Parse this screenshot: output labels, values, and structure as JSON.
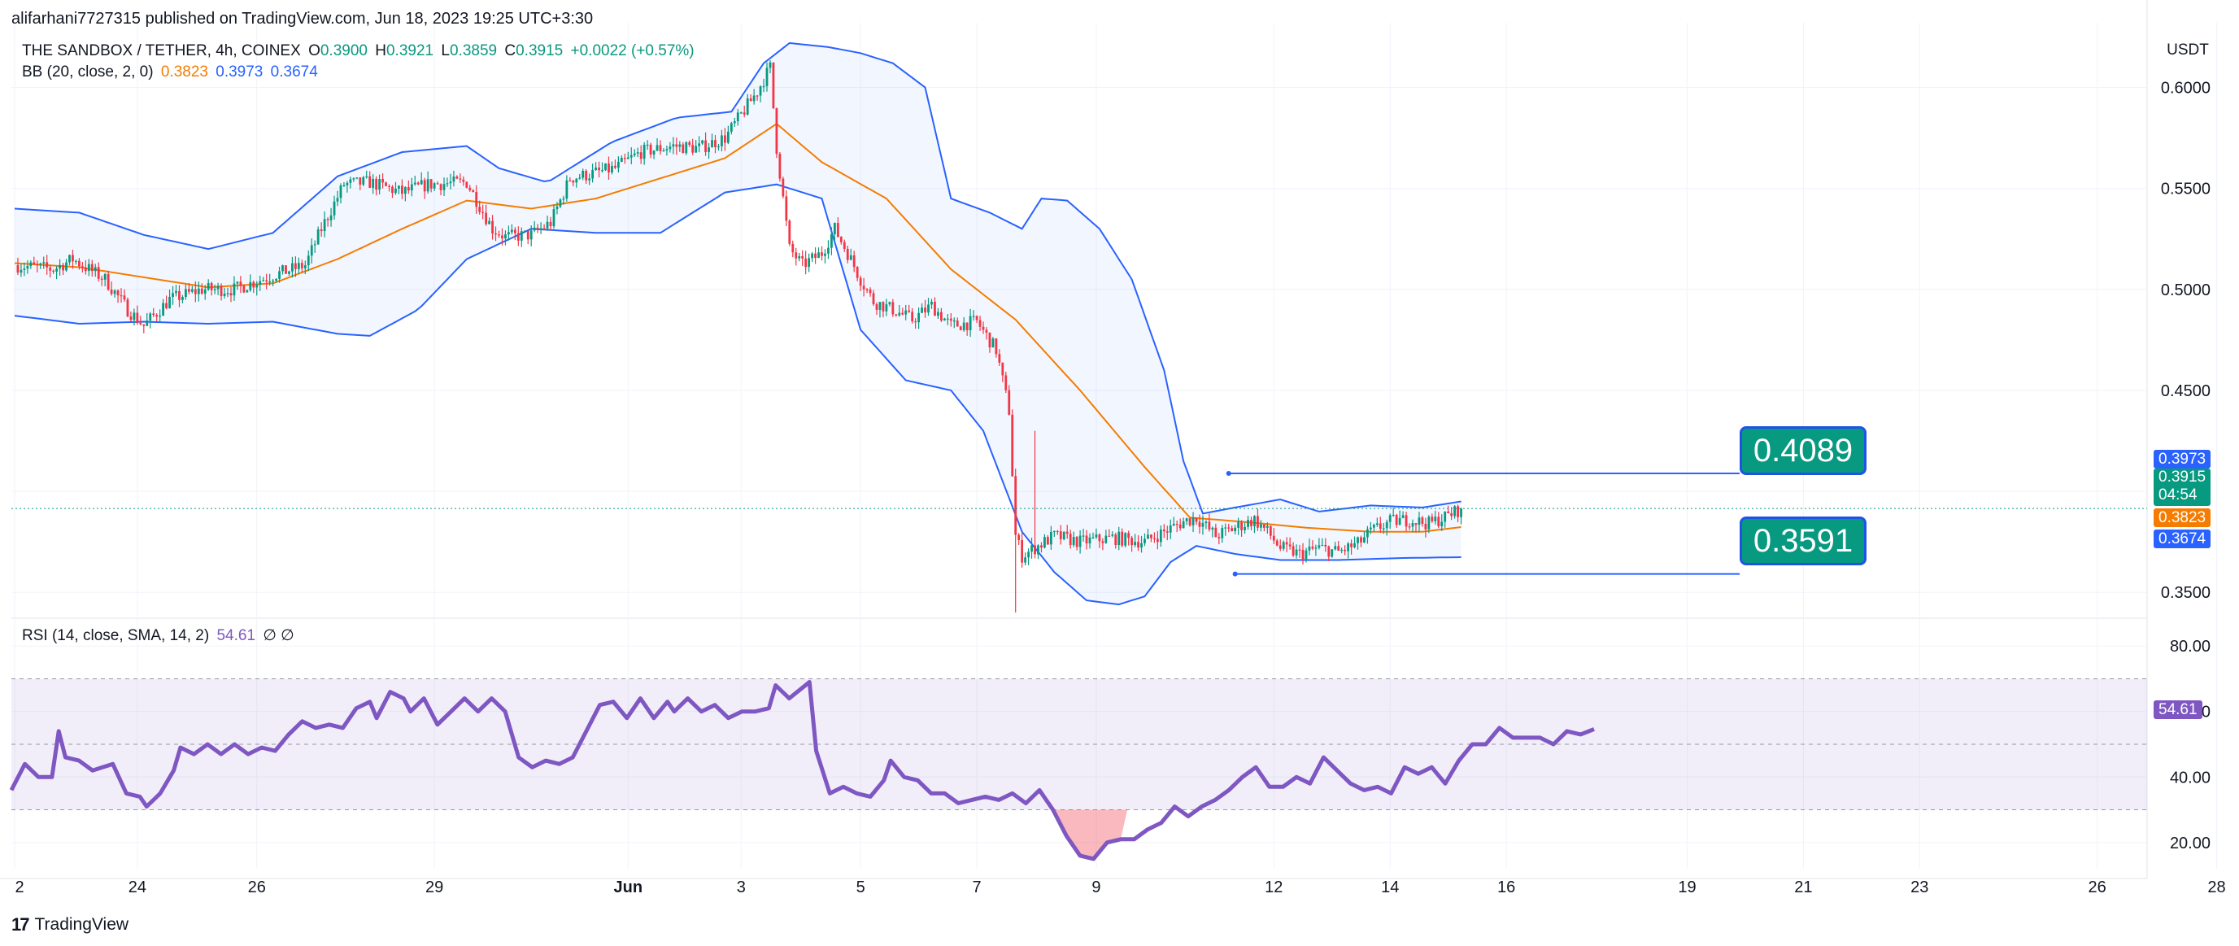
{
  "header": {
    "published": "alifarhani7727315 published on TradingView.com, Jun 18, 2023 19:25 UTC+3:30",
    "symbol": "THE SANDBOX / TETHER, 4h, COINEX",
    "open_label": "O",
    "open": "0.3900",
    "high_label": "H",
    "high": "0.3921",
    "low_label": "L",
    "low": "0.3859",
    "close_label": "C",
    "close": "0.3915",
    "change": "+0.0022 (+0.57%)",
    "bb_label": "BB (20, close, 2, 0)",
    "bb_basis": "0.3823",
    "bb_upper": "0.3973",
    "bb_lower": "0.3674",
    "rsi_label": "RSI (14, close, SMA, 14, 2)",
    "rsi_value": "54.61",
    "rsi_na": "∅ ∅"
  },
  "currency": "USDT",
  "branding": "TradingView",
  "callouts": {
    "upper": "0.4089",
    "lower": "0.3591"
  },
  "price_tags": {
    "bb_upper": "0.3973",
    "last": "0.3915",
    "countdown": "04:54",
    "bb_basis": "0.3823",
    "bb_lower": "0.3674",
    "rsi": "54.61"
  },
  "colors": {
    "up": "#089981",
    "down": "#f23645",
    "bb_basis": "#f57c00",
    "bb_band": "#2962ff",
    "rsi": "#7e57c2",
    "accent": "#089981"
  },
  "chart_data": [
    {
      "type": "candlestick",
      "timeframe": "4h",
      "ylim": [
        0.338,
        0.628
      ],
      "y_ticks": [
        "0.6000",
        "0.5500",
        "0.5000",
        "0.4500",
        "0.3500"
      ],
      "x_ticks": [
        "2",
        "24",
        "26",
        "29",
        "Jun",
        "3",
        "5",
        "7",
        "9",
        "12",
        "14",
        "16",
        "19",
        "21",
        "23",
        "26",
        "28"
      ],
      "anchors": [
        [
          0,
          0.512
        ],
        [
          12,
          0.51
        ],
        [
          18,
          0.515
        ],
        [
          28,
          0.505
        ],
        [
          35,
          0.49
        ],
        [
          40,
          0.482
        ],
        [
          48,
          0.495
        ],
        [
          58,
          0.5
        ],
        [
          68,
          0.5
        ],
        [
          80,
          0.507
        ],
        [
          90,
          0.512
        ],
        [
          95,
          0.53
        ],
        [
          102,
          0.552
        ],
        [
          110,
          0.553
        ],
        [
          120,
          0.548
        ],
        [
          128,
          0.552
        ],
        [
          140,
          0.553
        ],
        [
          148,
          0.53
        ],
        [
          152,
          0.526
        ],
        [
          160,
          0.527
        ],
        [
          166,
          0.533
        ],
        [
          172,
          0.555
        ],
        [
          178,
          0.557
        ],
        [
          186,
          0.56
        ],
        [
          194,
          0.568
        ],
        [
          204,
          0.571
        ],
        [
          212,
          0.57
        ],
        [
          220,
          0.575
        ],
        [
          230,
          0.598
        ],
        [
          234,
          0.61
        ],
        [
          236,
          0.57
        ],
        [
          240,
          0.52
        ],
        [
          244,
          0.512
        ],
        [
          250,
          0.518
        ],
        [
          254,
          0.53
        ],
        [
          258,
          0.518
        ],
        [
          262,
          0.505
        ],
        [
          266,
          0.494
        ],
        [
          272,
          0.49
        ],
        [
          278,
          0.485
        ],
        [
          284,
          0.492
        ],
        [
          290,
          0.482
        ],
        [
          298,
          0.484
        ],
        [
          304,
          0.47
        ],
        [
          308,
          0.44
        ],
        [
          310,
          0.378
        ],
        [
          312,
          0.368
        ],
        [
          316,
          0.372
        ],
        [
          322,
          0.378
        ],
        [
          330,
          0.375
        ],
        [
          340,
          0.377
        ],
        [
          350,
          0.375
        ],
        [
          356,
          0.38
        ],
        [
          362,
          0.385
        ],
        [
          366,
          0.387
        ],
        [
          372,
          0.378
        ],
        [
          378,
          0.382
        ],
        [
          384,
          0.386
        ],
        [
          388,
          0.38
        ],
        [
          392,
          0.372
        ],
        [
          398,
          0.369
        ],
        [
          404,
          0.372
        ],
        [
          410,
          0.37
        ],
        [
          416,
          0.374
        ],
        [
          420,
          0.38
        ],
        [
          426,
          0.385
        ],
        [
          432,
          0.386
        ],
        [
          438,
          0.384
        ],
        [
          444,
          0.388
        ],
        [
          448,
          0.3915
        ]
      ],
      "bollinger": {
        "upper": [
          [
            0,
            0.54
          ],
          [
            20,
            0.538
          ],
          [
            40,
            0.527
          ],
          [
            60,
            0.52
          ],
          [
            80,
            0.528
          ],
          [
            100,
            0.556
          ],
          [
            120,
            0.568
          ],
          [
            140,
            0.571
          ],
          [
            150,
            0.56
          ],
          [
            165,
            0.553
          ],
          [
            185,
            0.573
          ],
          [
            205,
            0.585
          ],
          [
            222,
            0.588
          ],
          [
            232,
            0.612
          ],
          [
            240,
            0.622
          ],
          [
            252,
            0.62
          ],
          [
            262,
            0.617
          ],
          [
            272,
            0.612
          ],
          [
            282,
            0.6
          ],
          [
            290,
            0.545
          ],
          [
            302,
            0.538
          ],
          [
            312,
            0.53
          ],
          [
            318,
            0.545
          ],
          [
            326,
            0.544
          ],
          [
            336,
            0.53
          ],
          [
            346,
            0.505
          ],
          [
            356,
            0.46
          ],
          [
            362,
            0.415
          ],
          [
            368,
            0.389
          ],
          [
            378,
            0.392
          ],
          [
            392,
            0.396
          ],
          [
            404,
            0.39
          ],
          [
            420,
            0.393
          ],
          [
            436,
            0.392
          ],
          [
            448,
            0.395
          ]
        ],
        "basis": [
          [
            0,
            0.513
          ],
          [
            20,
            0.511
          ],
          [
            40,
            0.506
          ],
          [
            60,
            0.501
          ],
          [
            80,
            0.503
          ],
          [
            100,
            0.515
          ],
          [
            120,
            0.53
          ],
          [
            140,
            0.544
          ],
          [
            160,
            0.54
          ],
          [
            180,
            0.545
          ],
          [
            200,
            0.555
          ],
          [
            220,
            0.565
          ],
          [
            236,
            0.582
          ],
          [
            250,
            0.563
          ],
          [
            270,
            0.545
          ],
          [
            290,
            0.51
          ],
          [
            310,
            0.485
          ],
          [
            330,
            0.45
          ],
          [
            350,
            0.412
          ],
          [
            364,
            0.387
          ],
          [
            380,
            0.385
          ],
          [
            400,
            0.382
          ],
          [
            420,
            0.38
          ],
          [
            436,
            0.38
          ],
          [
            448,
            0.3823
          ]
        ],
        "lower": [
          [
            0,
            0.487
          ],
          [
            20,
            0.483
          ],
          [
            40,
            0.484
          ],
          [
            60,
            0.483
          ],
          [
            80,
            0.484
          ],
          [
            100,
            0.478
          ],
          [
            110,
            0.477
          ],
          [
            125,
            0.49
          ],
          [
            140,
            0.515
          ],
          [
            160,
            0.53
          ],
          [
            180,
            0.528
          ],
          [
            200,
            0.528
          ],
          [
            220,
            0.548
          ],
          [
            236,
            0.552
          ],
          [
            250,
            0.545
          ],
          [
            262,
            0.48
          ],
          [
            276,
            0.455
          ],
          [
            290,
            0.45
          ],
          [
            300,
            0.43
          ],
          [
            312,
            0.38
          ],
          [
            322,
            0.36
          ],
          [
            332,
            0.346
          ],
          [
            342,
            0.344
          ],
          [
            350,
            0.348
          ],
          [
            358,
            0.365
          ],
          [
            366,
            0.373
          ],
          [
            378,
            0.369
          ],
          [
            392,
            0.366
          ],
          [
            410,
            0.366
          ],
          [
            430,
            0.367
          ],
          [
            448,
            0.3674
          ]
        ]
      },
      "horizontal_levels": [
        0.4089,
        0.3591
      ]
    },
    {
      "type": "line",
      "name": "RSI (14, close, SMA, 14, 2)",
      "ylim": [
        12,
        88
      ],
      "y_ticks": [
        "80.00",
        "60.00",
        "40.00",
        "20.00"
      ],
      "bands": [
        70,
        50,
        30
      ],
      "points": [
        [
          0,
          36
        ],
        [
          4,
          44
        ],
        [
          8,
          40
        ],
        [
          12,
          40
        ],
        [
          14,
          54
        ],
        [
          16,
          46
        ],
        [
          20,
          45
        ],
        [
          24,
          42
        ],
        [
          30,
          44
        ],
        [
          34,
          35
        ],
        [
          38,
          34
        ],
        [
          40,
          31
        ],
        [
          44,
          35
        ],
        [
          48,
          42
        ],
        [
          50,
          49
        ],
        [
          54,
          47
        ],
        [
          58,
          50
        ],
        [
          62,
          47
        ],
        [
          66,
          50
        ],
        [
          70,
          47
        ],
        [
          74,
          49
        ],
        [
          78,
          48
        ],
        [
          82,
          53
        ],
        [
          86,
          57
        ],
        [
          90,
          55
        ],
        [
          94,
          56
        ],
        [
          98,
          55
        ],
        [
          102,
          61
        ],
        [
          106,
          63
        ],
        [
          108,
          58
        ],
        [
          112,
          66
        ],
        [
          116,
          64
        ],
        [
          118,
          60
        ],
        [
          122,
          64
        ],
        [
          126,
          56
        ],
        [
          130,
          60
        ],
        [
          134,
          64
        ],
        [
          138,
          60
        ],
        [
          142,
          64
        ],
        [
          146,
          60
        ],
        [
          150,
          46
        ],
        [
          154,
          43
        ],
        [
          158,
          45
        ],
        [
          162,
          44
        ],
        [
          166,
          46
        ],
        [
          170,
          54
        ],
        [
          174,
          62
        ],
        [
          178,
          63
        ],
        [
          182,
          58
        ],
        [
          186,
          64
        ],
        [
          190,
          58
        ],
        [
          194,
          63
        ],
        [
          196,
          60
        ],
        [
          200,
          64
        ],
        [
          204,
          60
        ],
        [
          208,
          62
        ],
        [
          212,
          58
        ],
        [
          216,
          60
        ],
        [
          220,
          60
        ],
        [
          224,
          61
        ],
        [
          226,
          68
        ],
        [
          230,
          64
        ],
        [
          236,
          69
        ],
        [
          238,
          48
        ],
        [
          242,
          35
        ],
        [
          246,
          37
        ],
        [
          250,
          35
        ],
        [
          254,
          34
        ],
        [
          258,
          39
        ],
        [
          260,
          45
        ],
        [
          264,
          40
        ],
        [
          268,
          39
        ],
        [
          272,
          35
        ],
        [
          276,
          35
        ],
        [
          280,
          32
        ],
        [
          284,
          33
        ],
        [
          288,
          34
        ],
        [
          292,
          33
        ],
        [
          296,
          35
        ],
        [
          300,
          32
        ],
        [
          304,
          36
        ],
        [
          308,
          30
        ],
        [
          312,
          22
        ],
        [
          316,
          16
        ],
        [
          320,
          15
        ],
        [
          324,
          20
        ],
        [
          328,
          21
        ],
        [
          332,
          21
        ],
        [
          336,
          24
        ],
        [
          340,
          26
        ],
        [
          344,
          31
        ],
        [
          348,
          28
        ],
        [
          352,
          31
        ],
        [
          356,
          33
        ],
        [
          360,
          36
        ],
        [
          364,
          40
        ],
        [
          368,
          43
        ],
        [
          372,
          37
        ],
        [
          376,
          37
        ],
        [
          380,
          40
        ],
        [
          384,
          38
        ],
        [
          388,
          46
        ],
        [
          392,
          42
        ],
        [
          396,
          38
        ],
        [
          400,
          36
        ],
        [
          404,
          37
        ],
        [
          408,
          35
        ],
        [
          412,
          43
        ],
        [
          416,
          41
        ],
        [
          420,
          43
        ],
        [
          424,
          38
        ],
        [
          428,
          45
        ],
        [
          432,
          50
        ],
        [
          436,
          50
        ],
        [
          440,
          55
        ],
        [
          444,
          52
        ],
        [
          448,
          52
        ],
        [
          452,
          52
        ],
        [
          456,
          50
        ],
        [
          460,
          54
        ],
        [
          464,
          53
        ],
        [
          468,
          54.61
        ]
      ]
    }
  ]
}
